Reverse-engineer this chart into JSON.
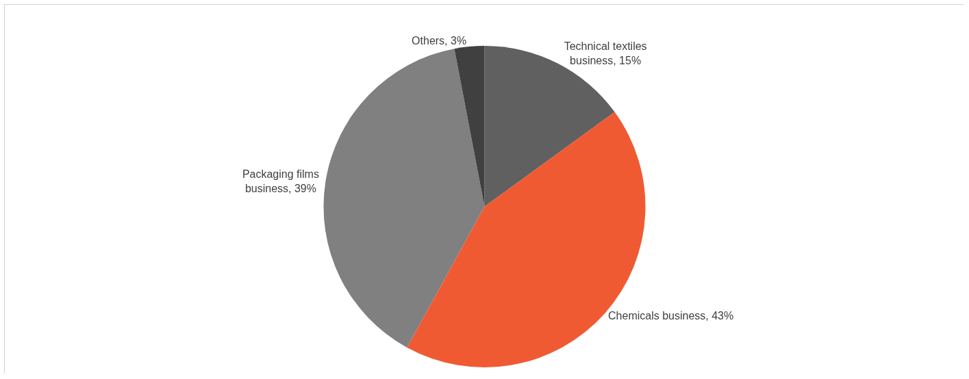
{
  "chart_data": {
    "type": "pie",
    "categories": [
      "Technical textiles business, 15%",
      "Chemicals business, 43%",
      "Packaging films business, 39%",
      "Others, 3%"
    ],
    "values": [
      15,
      43,
      39,
      3
    ],
    "colors": [
      "#606060",
      "#f05a32",
      "#808080",
      "#404040"
    ],
    "legend": false
  }
}
